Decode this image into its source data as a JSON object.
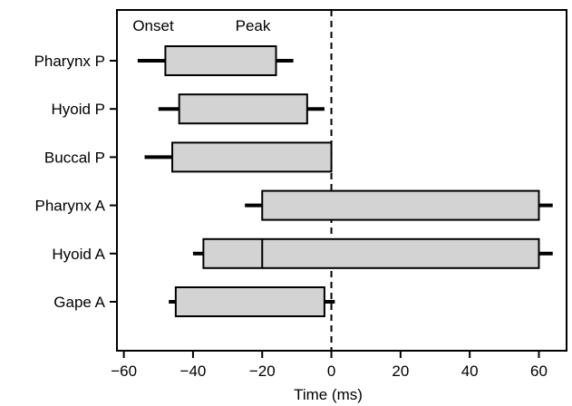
{
  "chart_data": {
    "type": "bar",
    "subtype": "horizontal-floating-range-with-whiskers",
    "title": "",
    "xlabel": "Time (ms)",
    "ylabel": "",
    "xlim": [
      -62,
      68
    ],
    "xticks": [
      -60,
      -40,
      -20,
      0,
      20,
      40,
      60
    ],
    "xtick_labels": [
      "−60",
      "−40",
      "−20",
      "0",
      "20",
      "40",
      "60"
    ],
    "reference_line": {
      "x": 0,
      "style": "dashed"
    },
    "box_fill": "#d3d3d3",
    "annotations": [
      {
        "text": "Onset",
        "near": "left edge of Pharynx P box"
      },
      {
        "text": "Peak",
        "near": "right edge of Pharynx P box"
      }
    ],
    "categories": [
      "Pharynx P",
      "Hyoid P",
      "Buccal P",
      "Pharynx A",
      "Hyoid A",
      "Gape A"
    ],
    "rows": [
      {
        "label": "Pharynx P",
        "whisker_left": -56,
        "onset": -48,
        "peak": -16,
        "whisker_right": -11
      },
      {
        "label": "Hyoid P",
        "whisker_left": -50,
        "onset": -44,
        "peak": -7,
        "whisker_right": -2
      },
      {
        "label": "Buccal P",
        "whisker_left": -54,
        "onset": -46,
        "peak": 0,
        "whisker_right": 0
      },
      {
        "label": "Pharynx A",
        "whisker_left": -25,
        "onset": -20,
        "peak": 60,
        "whisker_right": 64
      },
      {
        "label": "Hyoid A",
        "whisker_left": -40,
        "onset": -37,
        "peak": 60,
        "whisker_right": 64,
        "inner_line": -20
      },
      {
        "label": "Gape A",
        "whisker_left": -47,
        "onset": -45,
        "peak": -2,
        "whisker_right": 1
      }
    ]
  }
}
